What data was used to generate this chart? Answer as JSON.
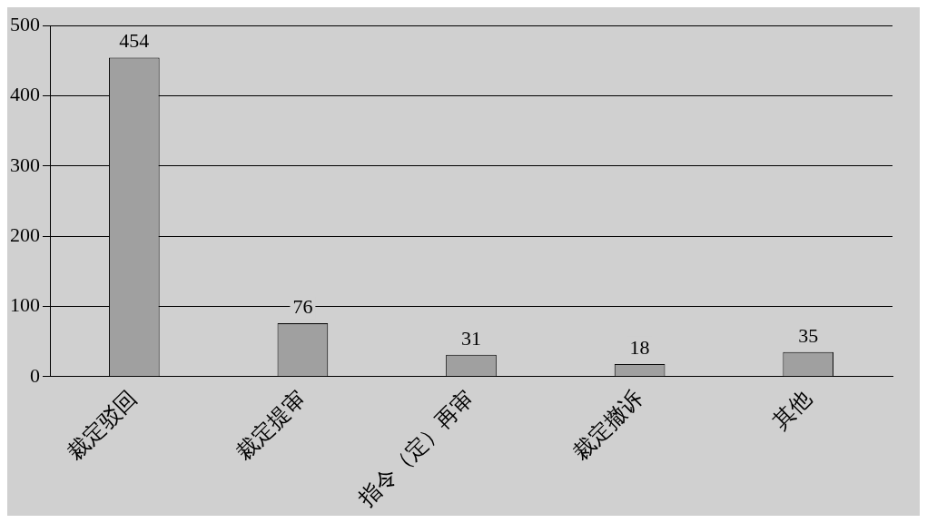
{
  "chart_data": {
    "type": "bar",
    "categories": [
      "裁定驳回",
      "裁定提审",
      "指令（定）再审",
      "裁定撤诉",
      "其他"
    ],
    "values": [
      454,
      76,
      31,
      18,
      35
    ],
    "color": "#a0a0a0",
    "ylim": [
      0,
      500
    ],
    "yticks": [
      0,
      100,
      200,
      300,
      400,
      500
    ],
    "grid": "y",
    "data_labels": true,
    "legend": false
  }
}
